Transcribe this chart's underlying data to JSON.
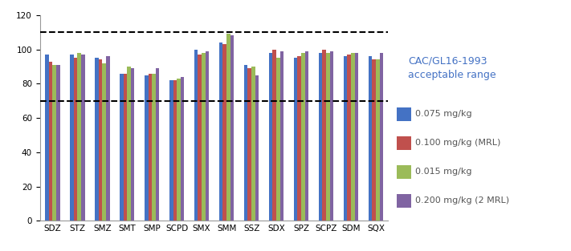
{
  "categories": [
    "SDZ",
    "STZ",
    "SMZ",
    "SMT",
    "SMP",
    "SCPD",
    "SMX",
    "SMM",
    "SSZ",
    "SDX",
    "SPZ",
    "SCPZ",
    "SDM",
    "SQX"
  ],
  "series": {
    "0.075 mg/kg": [
      97,
      97,
      95,
      86,
      85,
      82,
      100,
      104,
      91,
      98,
      95,
      98,
      96,
      96
    ],
    "0.100 mg/kg (MRL)": [
      93,
      95,
      94,
      86,
      86,
      82,
      97,
      103,
      89,
      100,
      96,
      100,
      97,
      94
    ],
    "0.015 mg/kg": [
      91,
      98,
      92,
      90,
      86,
      83,
      98,
      109,
      90,
      95,
      98,
      98,
      98,
      94
    ],
    "0.200 mg/kg (2 MRL)": [
      91,
      97,
      96,
      89,
      89,
      84,
      99,
      108,
      85,
      99,
      99,
      99,
      98,
      98
    ]
  },
  "colors": [
    "#4472C4",
    "#C0504D",
    "#9BBB59",
    "#8064A2"
  ],
  "ylim": [
    0,
    120
  ],
  "yticks": [
    0,
    20,
    40,
    60,
    80,
    100,
    120
  ],
  "hline_upper": 110,
  "hline_lower": 70,
  "annotation_text": "CAC/GL16-1993\nacceptable range",
  "annotation_color": "#4472C4",
  "background_color": "#FFFFFF",
  "bar_width": 0.15,
  "annotation_fontsize": 9,
  "legend_fontsize": 8,
  "tick_fontsize": 7.5
}
